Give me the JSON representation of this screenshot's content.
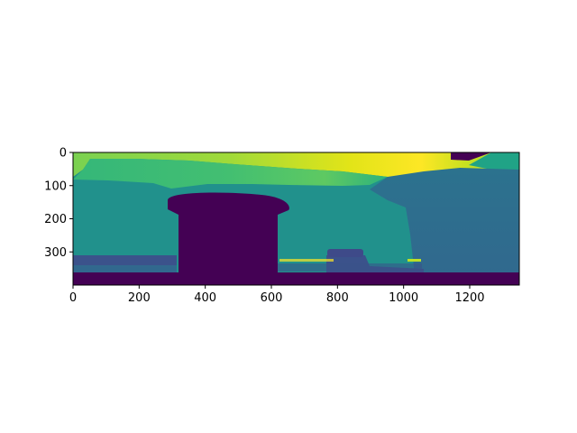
{
  "chart_data": {
    "type": "heatmap",
    "title": "",
    "xlabel": "",
    "ylabel": "",
    "xlim": [
      0,
      1350
    ],
    "ylim": [
      400,
      0
    ],
    "colormap": "viridis",
    "x_ticks": [
      0,
      200,
      400,
      600,
      800,
      1000,
      1200
    ],
    "y_ticks": [
      0,
      100,
      200,
      300
    ],
    "x_tick_labels": [
      "0",
      "200",
      "400",
      "600",
      "800",
      "1000",
      "1200"
    ],
    "y_tick_labels": [
      "0",
      "100",
      "200",
      "300"
    ],
    "colors": {
      "darkest": "#440154",
      "blue": "#31688e",
      "teal": "#21918c",
      "teal_light": "#2aa484",
      "green": "#5ec962",
      "green_yellow": "#a0da39",
      "yellow": "#fde725",
      "slate": "#3b528b"
    }
  }
}
